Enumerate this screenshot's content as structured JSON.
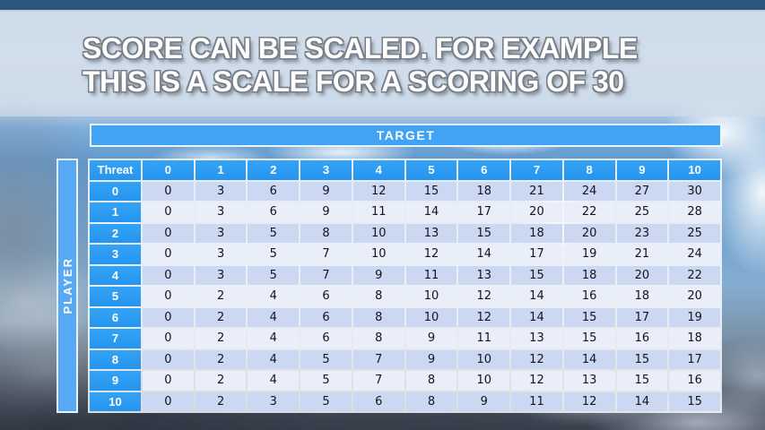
{
  "slide": {
    "title_line1": "SCORE CAN BE SCALED. FOR EXAMPLE",
    "title_line2": "THIS IS A SCALE FOR A SCORING OF 30"
  },
  "table": {
    "target_label": "TARGET",
    "player_label": "PLAYER",
    "corner_label": "Threat",
    "column_headers": [
      "0",
      "1",
      "2",
      "3",
      "4",
      "5",
      "6",
      "7",
      "8",
      "9",
      "10"
    ],
    "row_headers": [
      "0",
      "1",
      "2",
      "3",
      "4",
      "5",
      "6",
      "7",
      "8",
      "9",
      "10"
    ],
    "rows": [
      [
        0,
        3,
        6,
        9,
        12,
        15,
        18,
        21,
        24,
        27,
        30
      ],
      [
        0,
        3,
        6,
        9,
        11,
        14,
        17,
        20,
        22,
        25,
        28
      ],
      [
        0,
        3,
        5,
        8,
        10,
        13,
        15,
        18,
        20,
        23,
        25
      ],
      [
        0,
        3,
        5,
        7,
        10,
        12,
        14,
        17,
        19,
        21,
        24
      ],
      [
        0,
        3,
        5,
        7,
        9,
        11,
        13,
        15,
        18,
        20,
        22
      ],
      [
        0,
        2,
        4,
        6,
        8,
        10,
        12,
        14,
        16,
        18,
        20
      ],
      [
        0,
        2,
        4,
        6,
        8,
        10,
        12,
        14,
        15,
        17,
        19
      ],
      [
        0,
        2,
        4,
        6,
        8,
        9,
        11,
        13,
        15,
        16,
        18
      ],
      [
        0,
        2,
        4,
        5,
        7,
        9,
        10,
        12,
        14,
        15,
        17
      ],
      [
        0,
        2,
        4,
        5,
        7,
        8,
        10,
        12,
        13,
        15,
        16
      ],
      [
        0,
        2,
        3,
        5,
        6,
        8,
        9,
        11,
        12,
        14,
        15
      ]
    ]
  },
  "colors": {
    "header_blue": "#2e9ff3",
    "target_bar_blue": "#41a3f3",
    "player_bar_blue": "#57a9f4",
    "row_even": "#ccd8f2",
    "row_odd": "#e9eef9",
    "cell_text": "#14141d",
    "header_text": "#ffffff",
    "title_text": "#ffffff",
    "sky_top": "#2b5680",
    "sky_bottom": "#39414c"
  }
}
